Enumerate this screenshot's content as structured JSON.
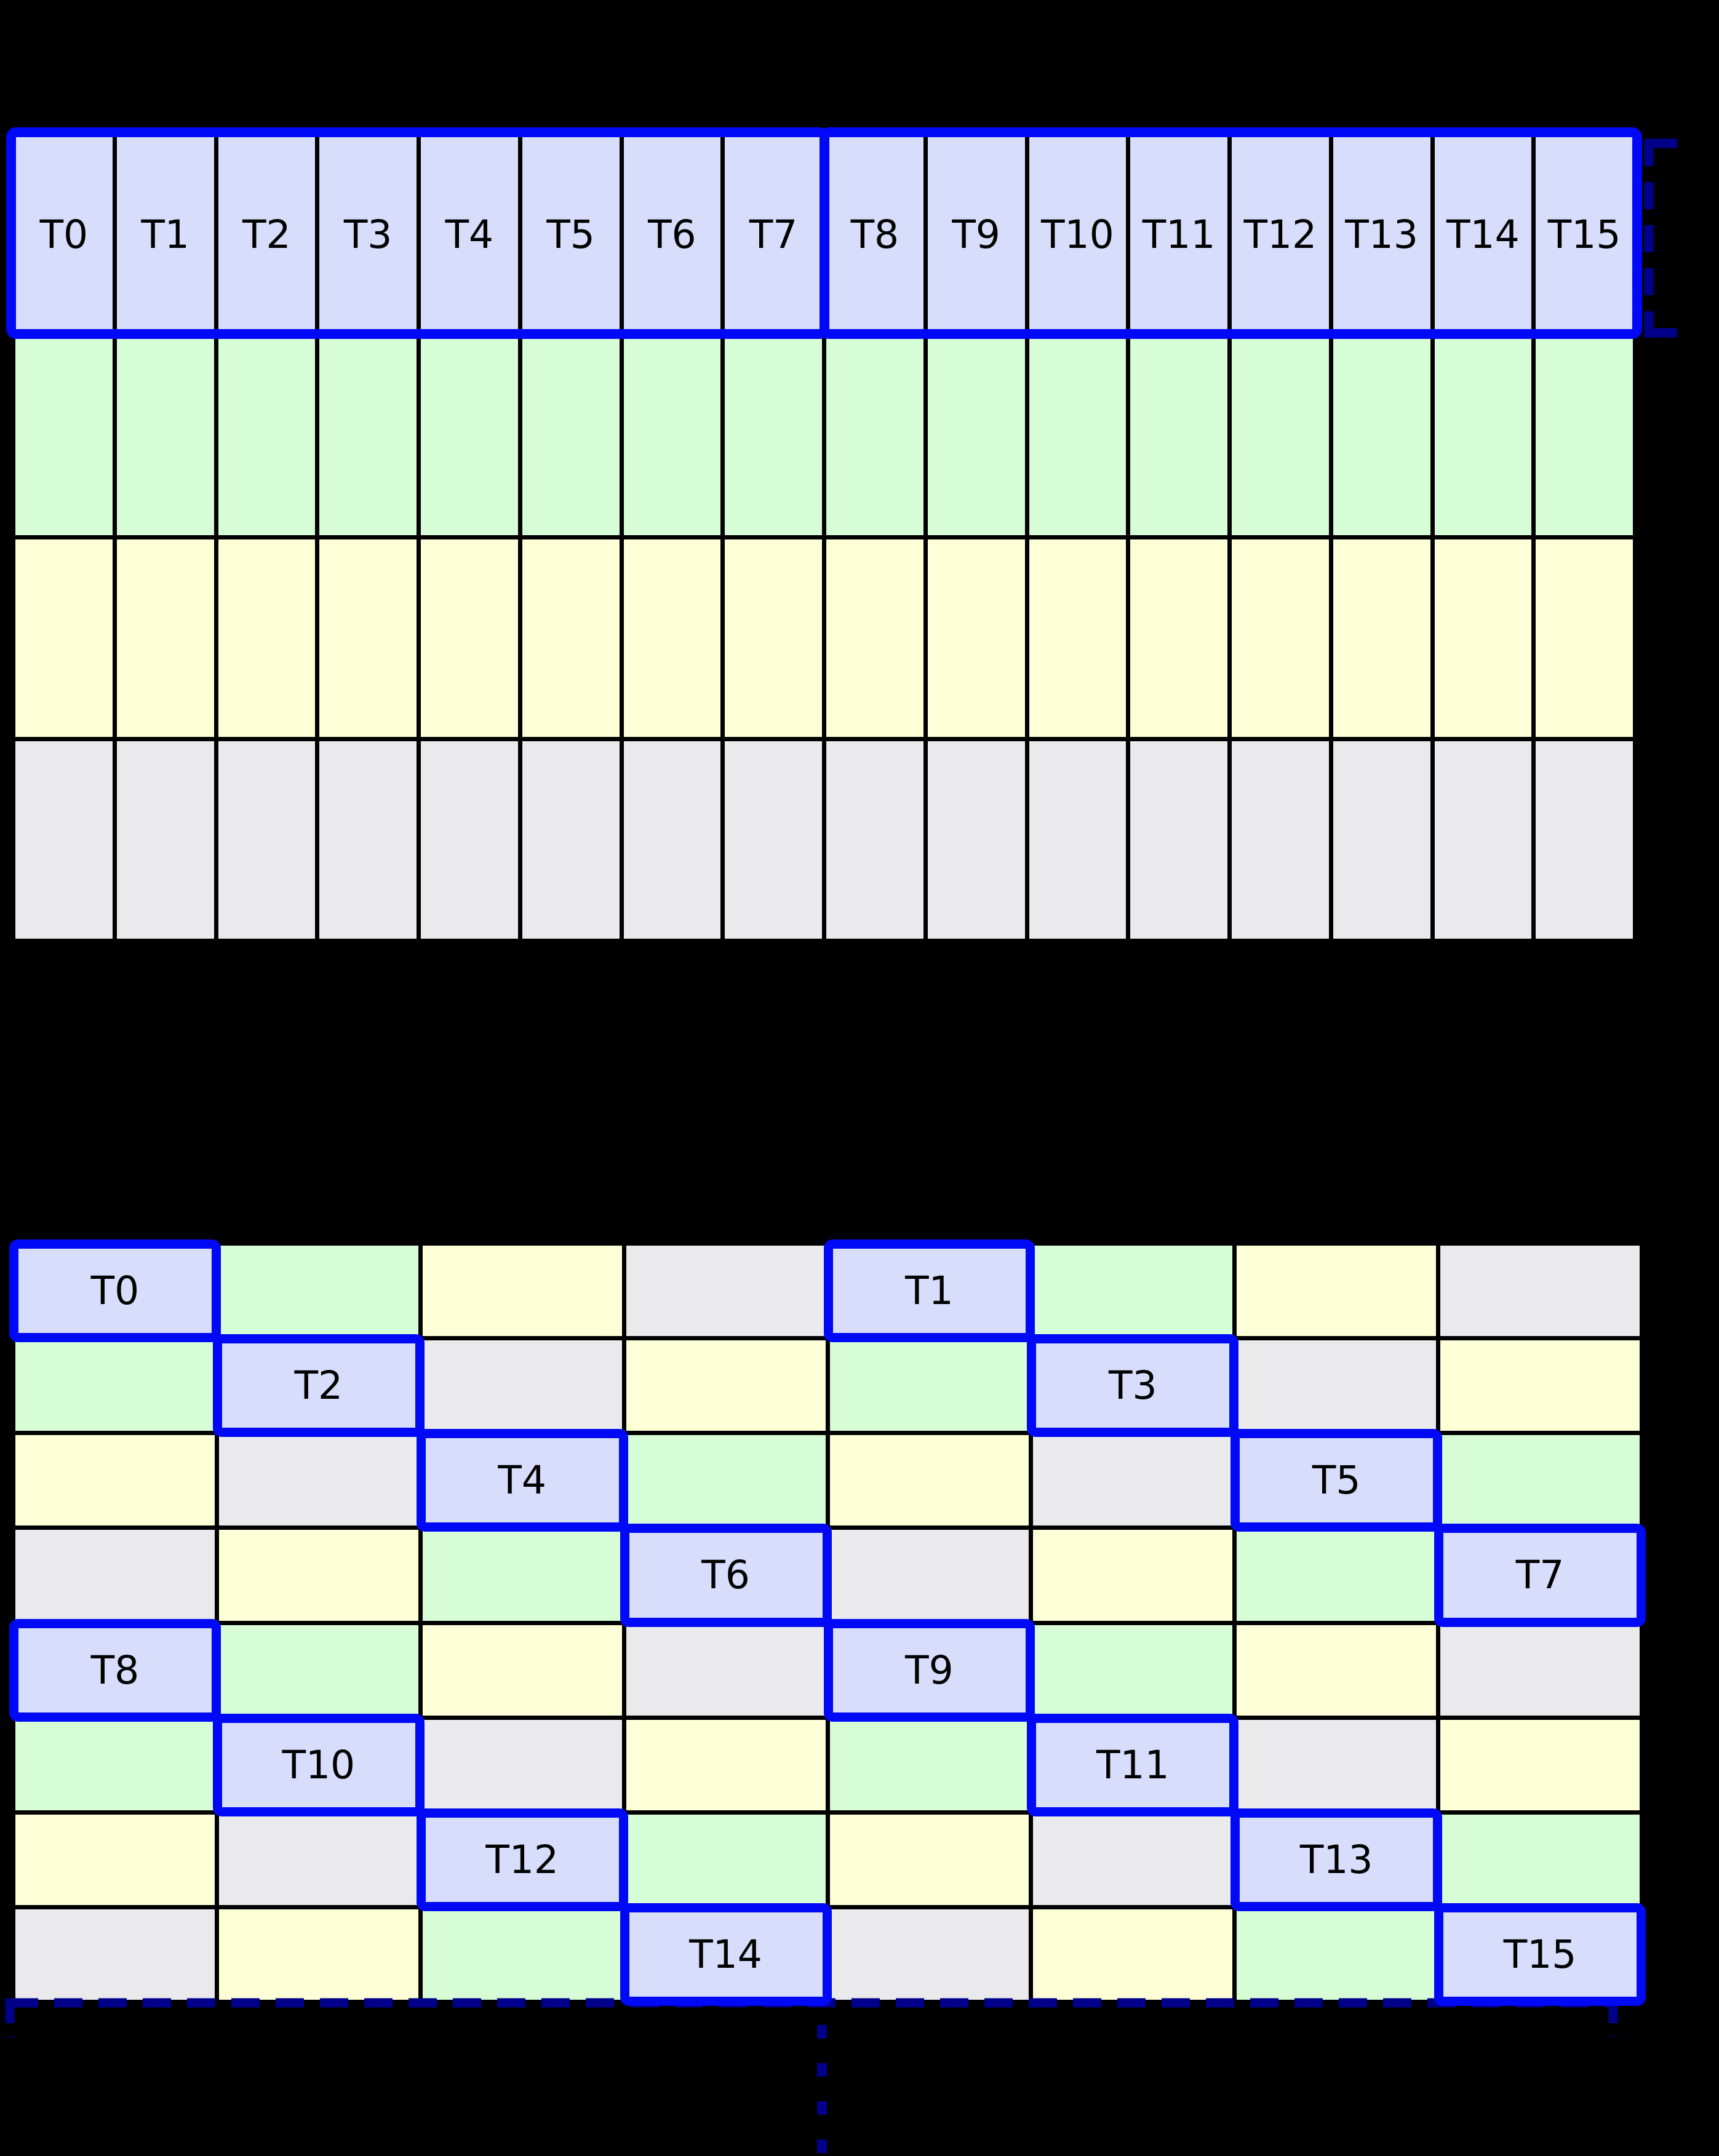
{
  "diagram": {
    "background": "#000000",
    "palette": {
      "thread": "#d7ddfa",
      "green": "#d7fdd7",
      "yellow": "#fdffd6",
      "gray": "#eaeaec",
      "highlight": "#0009f5",
      "bracket": "#00008b",
      "gridline": "#000000"
    },
    "top_grid": {
      "cols": 16,
      "rows": 4,
      "header_labels": [
        "T0",
        "T1",
        "T2",
        "T3",
        "T4",
        "T5",
        "T6",
        "T7",
        "T8",
        "T9",
        "T10",
        "T11",
        "T12",
        "T13",
        "T14",
        "T15"
      ],
      "row_colors": [
        "thread",
        "green",
        "yellow",
        "gray"
      ],
      "warp_groups": [
        {
          "first": "T0",
          "last": "T7"
        },
        {
          "first": "T8",
          "last": "T15"
        }
      ],
      "right_bracket_icon": "dashed-square-bracket-right"
    },
    "bottom_grid": {
      "cols": 8,
      "rows": 8,
      "cells": [
        [
          {
            "c": "thread",
            "t": "T0"
          },
          {
            "c": "green"
          },
          {
            "c": "yellow"
          },
          {
            "c": "gray"
          },
          {
            "c": "thread",
            "t": "T1"
          },
          {
            "c": "green"
          },
          {
            "c": "yellow"
          },
          {
            "c": "gray"
          }
        ],
        [
          {
            "c": "green"
          },
          {
            "c": "thread",
            "t": "T2"
          },
          {
            "c": "gray"
          },
          {
            "c": "yellow"
          },
          {
            "c": "green"
          },
          {
            "c": "thread",
            "t": "T3"
          },
          {
            "c": "gray"
          },
          {
            "c": "yellow"
          }
        ],
        [
          {
            "c": "yellow"
          },
          {
            "c": "gray"
          },
          {
            "c": "thread",
            "t": "T4"
          },
          {
            "c": "green"
          },
          {
            "c": "yellow"
          },
          {
            "c": "gray"
          },
          {
            "c": "thread",
            "t": "T5"
          },
          {
            "c": "green"
          }
        ],
        [
          {
            "c": "gray"
          },
          {
            "c": "yellow"
          },
          {
            "c": "green"
          },
          {
            "c": "thread",
            "t": "T6"
          },
          {
            "c": "gray"
          },
          {
            "c": "yellow"
          },
          {
            "c": "green"
          },
          {
            "c": "thread",
            "t": "T7"
          }
        ],
        [
          {
            "c": "thread",
            "t": "T8"
          },
          {
            "c": "green"
          },
          {
            "c": "yellow"
          },
          {
            "c": "gray"
          },
          {
            "c": "thread",
            "t": "T9"
          },
          {
            "c": "green"
          },
          {
            "c": "yellow"
          },
          {
            "c": "gray"
          }
        ],
        [
          {
            "c": "green"
          },
          {
            "c": "thread",
            "t": "T10"
          },
          {
            "c": "gray"
          },
          {
            "c": "yellow"
          },
          {
            "c": "green"
          },
          {
            "c": "thread",
            "t": "T11"
          },
          {
            "c": "gray"
          },
          {
            "c": "yellow"
          }
        ],
        [
          {
            "c": "yellow"
          },
          {
            "c": "gray"
          },
          {
            "c": "thread",
            "t": "T12"
          },
          {
            "c": "green"
          },
          {
            "c": "yellow"
          },
          {
            "c": "gray"
          },
          {
            "c": "thread",
            "t": "T13"
          },
          {
            "c": "green"
          }
        ],
        [
          {
            "c": "gray"
          },
          {
            "c": "yellow"
          },
          {
            "c": "green"
          },
          {
            "c": "thread",
            "t": "T14"
          },
          {
            "c": "gray"
          },
          {
            "c": "yellow"
          },
          {
            "c": "green"
          },
          {
            "c": "thread",
            "t": "T15"
          }
        ]
      ],
      "bottom_bracket_icon": "dashed-bracket-below",
      "continuation_icon": "vertical-ellipsis"
    }
  }
}
